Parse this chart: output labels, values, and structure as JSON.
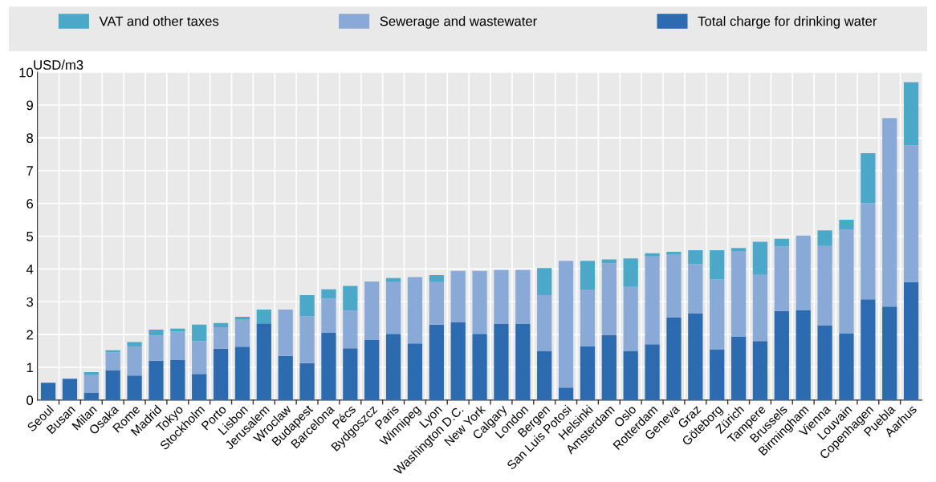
{
  "chart_data": {
    "type": "bar",
    "stacked": true,
    "ylabel": "USD/m3",
    "categories": [
      "Seoul",
      "Busan",
      "Milan",
      "Osaka",
      "Rome",
      "Madrid",
      "Tokyo",
      "Stockholm",
      "Porto",
      "Lisbon",
      "Jerusalem",
      "Wroclaw",
      "Budapest",
      "Barcelona",
      "Pécs",
      "Bydgoszcz",
      "Paris",
      "Winnipeg",
      "Lyon",
      "Washington D.C.",
      "New York",
      "Calgary",
      "London",
      "Bergen",
      "San Luis Potosi",
      "Helsinki",
      "Amsterdam",
      "Oslo",
      "Rotterdam",
      "Geneva",
      "Graz",
      "Göteborg",
      "Zürich",
      "Tampere",
      "Brussels",
      "Birmingham",
      "Vienna",
      "Louvain",
      "Copenhagen",
      "Puebla",
      "Aarhus"
    ],
    "series": [
      {
        "name": "Total charge for drinking water",
        "color": "#2c6bb0",
        "values": [
          0.53,
          0.65,
          0.23,
          0.9,
          0.75,
          1.2,
          1.22,
          0.8,
          1.57,
          1.63,
          2.34,
          1.35,
          1.13,
          2.05,
          1.58,
          1.83,
          2.02,
          1.73,
          2.3,
          2.37,
          2.02,
          2.33,
          2.33,
          1.5,
          0.38,
          1.64,
          1.99,
          1.5,
          1.7,
          2.53,
          2.65,
          1.54,
          1.93,
          1.8,
          2.72,
          2.75,
          2.27,
          2.04,
          3.07,
          2.85,
          3.6
        ]
      },
      {
        "name": "Sewerage and wastewater",
        "color": "#89a9d6",
        "values": [
          0,
          0,
          0.53,
          0.55,
          0.87,
          0.77,
          0.87,
          1.0,
          0.65,
          0.82,
          0,
          1.41,
          1.42,
          1.05,
          1.15,
          1.79,
          1.58,
          2.02,
          1.3,
          1.57,
          1.92,
          1.64,
          1.64,
          1.7,
          3.87,
          1.73,
          2.18,
          1.95,
          2.68,
          1.92,
          1.5,
          2.14,
          2.62,
          2.02,
          1.96,
          2.27,
          2.43,
          3.16,
          2.93,
          5.75,
          4.17
        ]
      },
      {
        "name": "VAT and other taxes",
        "color": "#4ca8c8",
        "values": [
          0,
          0,
          0.09,
          0.07,
          0.15,
          0.18,
          0.09,
          0.5,
          0.13,
          0.09,
          0.42,
          0,
          0.65,
          0.28,
          0.75,
          0,
          0.12,
          0,
          0.21,
          0,
          0,
          0,
          0,
          0.83,
          0,
          0.88,
          0.12,
          0.87,
          0.1,
          0.07,
          0.42,
          0.89,
          0.09,
          1.01,
          0.24,
          0,
          0.48,
          0.3,
          1.53,
          0,
          1.93
        ]
      }
    ],
    "ylim": [
      0,
      10
    ],
    "yticks": [
      0,
      1,
      2,
      3,
      4,
      5,
      6,
      7,
      8,
      9,
      10
    ],
    "grid": true,
    "legend": "top"
  }
}
